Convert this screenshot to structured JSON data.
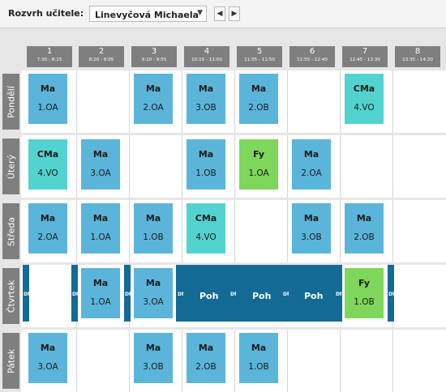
{
  "toolbar": {
    "label": "Rozvrh učitele:",
    "selected_teacher": "Linevyčová Michaela",
    "prev_icon": "chevron-left-icon",
    "next_icon": "chevron-right-icon"
  },
  "periods": [
    {
      "num": "1",
      "time": "7:30 - 8:15"
    },
    {
      "num": "2",
      "time": "8:20 - 9:05"
    },
    {
      "num": "3",
      "time": "9:10 - 9:55"
    },
    {
      "num": "4",
      "time": "10:15 - 11:00"
    },
    {
      "num": "5",
      "time": "11:05 - 11:50"
    },
    {
      "num": "6",
      "time": "11:55 - 12:40"
    },
    {
      "num": "7",
      "time": "12:45 - 13:30"
    },
    {
      "num": "8",
      "time": "13:35 - 14:20"
    }
  ],
  "days": [
    "Pondělí",
    "Úterý",
    "Středa",
    "Čtvrtek",
    "Pátek"
  ],
  "lessons": {
    "pon_1": {
      "subject": "Ma",
      "class": "1.OA"
    },
    "pon_3": {
      "subject": "Ma",
      "class": "2.OA"
    },
    "pon_4": {
      "subject": "Ma",
      "class": "3.OB"
    },
    "pon_5": {
      "subject": "Ma",
      "class": "2.OB"
    },
    "pon_7": {
      "subject": "CMa",
      "class": "4.VO"
    },
    "ute_1": {
      "subject": "CMa",
      "class": "4.VO"
    },
    "ute_2": {
      "subject": "Ma",
      "class": "3.OA"
    },
    "ute_4": {
      "subject": "Ma",
      "class": "1.OB"
    },
    "ute_5": {
      "subject": "Fy",
      "class": "1.OA"
    },
    "ute_6": {
      "subject": "Ma",
      "class": "2.OA"
    },
    "str_1": {
      "subject": "Ma",
      "class": "2.OA"
    },
    "str_2": {
      "subject": "Ma",
      "class": "1.OA"
    },
    "str_3": {
      "subject": "Ma",
      "class": "1.OB"
    },
    "str_4": {
      "subject": "CMa",
      "class": "4.VO"
    },
    "str_6": {
      "subject": "Ma",
      "class": "3.OB"
    },
    "str_7": {
      "subject": "Ma",
      "class": "2.OB"
    },
    "ctv_2": {
      "subject": "Ma",
      "class": "1.OA"
    },
    "ctv_3": {
      "subject": "Ma",
      "class": "3.OA"
    },
    "ctv_7": {
      "subject": "Fy",
      "class": "1.OB"
    },
    "pat_1": {
      "subject": "Ma",
      "class": "3.OA"
    },
    "pat_3": {
      "subject": "Ma",
      "class": "3.OB"
    },
    "pat_4": {
      "subject": "Ma",
      "class": "2.OB"
    },
    "pat_5": {
      "subject": "Ma",
      "class": "1.OB"
    }
  },
  "supervision": {
    "block_label": "Poh",
    "dh_label": "Dł"
  },
  "colors": {
    "ma": "#5bb5da",
    "cma": "#53d3cf",
    "fy": "#7ed65a",
    "supervision": "#126a95",
    "header": "#7f7f7f"
  }
}
